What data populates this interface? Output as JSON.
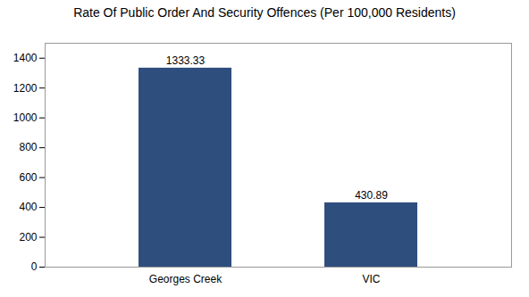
{
  "chart_data": {
    "type": "bar",
    "title": "Rate Of Public Order And Security Offences (Per 100,000 Residents)",
    "categories": [
      "Georges Creek",
      "VIC"
    ],
    "values": [
      1333.33,
      430.89
    ],
    "color": "#2e4e7e",
    "ylim": [
      0,
      1500
    ],
    "yticks": [
      0,
      200,
      400,
      600,
      800,
      1000,
      1200,
      1400
    ],
    "grid": false,
    "data_labels": true
  }
}
